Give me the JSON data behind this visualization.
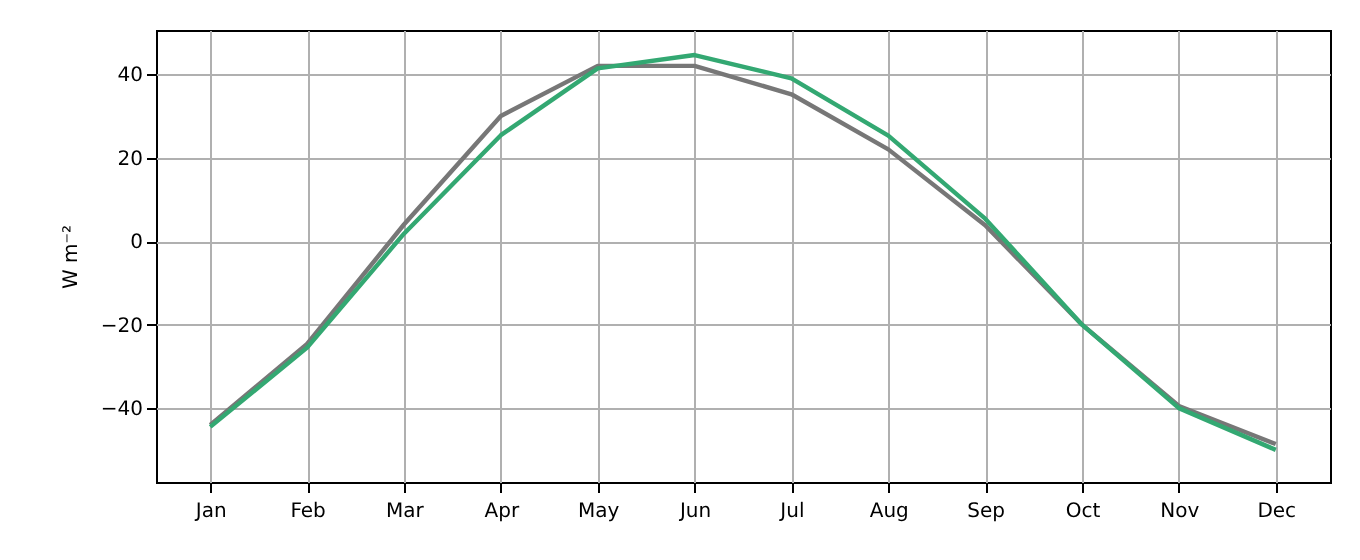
{
  "chart_data": {
    "type": "line",
    "ylabel": "W m⁻²",
    "categories": [
      "Jan",
      "Feb",
      "Mar",
      "Apr",
      "May",
      "Jun",
      "Jul",
      "Aug",
      "Sep",
      "Oct",
      "Nov",
      "Dec"
    ],
    "series": [
      {
        "color": "#777777",
        "values": [
          -44,
          -24.6,
          4,
          30,
          42,
          42,
          35.2,
          22,
          3.8,
          -20,
          -39.5,
          -48.6
        ]
      },
      {
        "color": "#33a872",
        "values": [
          -44.5,
          -25.5,
          1.8,
          25.4,
          41.4,
          44.6,
          39,
          25.3,
          5.4,
          -20,
          -40,
          -50
        ]
      }
    ],
    "ylim": [
      -57.7,
      50.6
    ],
    "yticks": [
      -40,
      -20,
      0,
      20,
      40
    ],
    "grid": true,
    "marker": "none",
    "line_style": "solid"
  }
}
